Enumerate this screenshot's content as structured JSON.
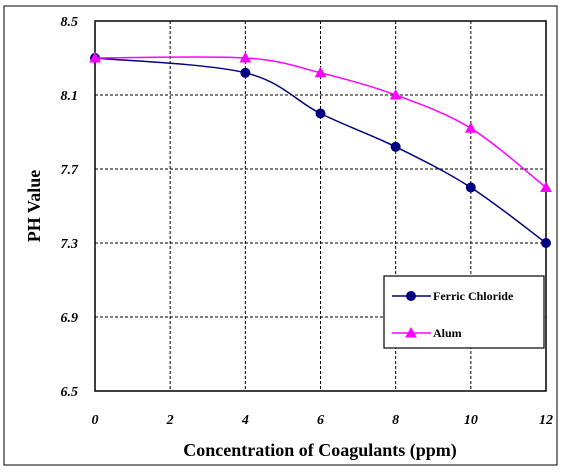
{
  "chart_data": {
    "type": "line",
    "title": "",
    "xlabel": "Concentration of Coagulants (ppm)",
    "ylabel": "PH  Value",
    "xlim": [
      0,
      12
    ],
    "ylim": [
      6.5,
      8.5
    ],
    "xticks": [
      "0",
      "2",
      "4",
      "6",
      "8",
      "10",
      "12"
    ],
    "yticks": [
      "6.5",
      "6.9",
      "7.3",
      "7.7",
      "8.1",
      "8.5"
    ],
    "grid": {
      "vertical": "dashed",
      "horizontal": "dashed"
    },
    "legend_position": "bottom-right",
    "series": [
      {
        "name": "Ferric Chloride",
        "color": "#000080",
        "marker": "circle",
        "x": [
          0,
          4,
          6,
          8,
          10,
          12
        ],
        "y": [
          8.3,
          8.22,
          8.0,
          7.82,
          7.6,
          7.3
        ]
      },
      {
        "name": "Alum",
        "color": "#ff00ff",
        "marker": "triangle",
        "x": [
          0,
          4,
          6,
          8,
          10,
          12
        ],
        "y": [
          8.3,
          8.3,
          8.22,
          8.1,
          7.92,
          7.6
        ]
      }
    ]
  }
}
